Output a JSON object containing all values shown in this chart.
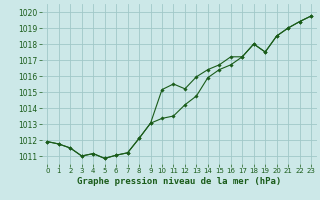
{
  "xlabel": "Graphe pression niveau de la mer (hPa)",
  "xlim": [
    -0.5,
    23.5
  ],
  "ylim": [
    1010.5,
    1020.5
  ],
  "yticks": [
    1011,
    1012,
    1013,
    1014,
    1015,
    1016,
    1017,
    1018,
    1019,
    1020
  ],
  "xticks": [
    0,
    1,
    2,
    3,
    4,
    5,
    6,
    7,
    8,
    9,
    10,
    11,
    12,
    13,
    14,
    15,
    16,
    17,
    18,
    19,
    20,
    21,
    22,
    23
  ],
  "background_color": "#cce8e8",
  "grid_color": "#a0c8c8",
  "line_color": "#1a5c1a",
  "line1_y": [
    1011.9,
    1011.75,
    1011.5,
    1011.0,
    1011.15,
    1010.85,
    1011.05,
    1011.2,
    1012.1,
    1013.05,
    1013.35,
    1013.5,
    1014.2,
    1014.75,
    1015.9,
    1016.4,
    1016.7,
    1017.2,
    1018.0,
    1017.5,
    1018.5,
    1019.0,
    1019.4,
    1019.75
  ],
  "line2_y": [
    1011.9,
    1011.75,
    1011.5,
    1011.0,
    1011.15,
    1010.85,
    1011.05,
    1011.2,
    1012.1,
    1013.05,
    1015.15,
    1015.5,
    1015.2,
    1015.95,
    1016.4,
    1016.7,
    1017.2,
    1017.2,
    1018.0,
    1017.5,
    1018.5,
    1019.0,
    1019.4,
    1019.75
  ],
  "tick_fontsize": 5.5,
  "xlabel_fontsize": 6.5
}
